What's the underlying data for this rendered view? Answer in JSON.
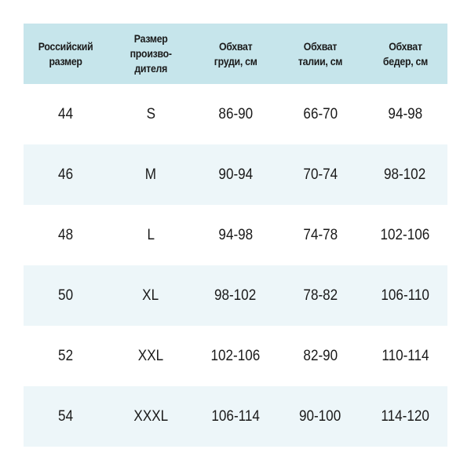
{
  "headers": [
    "Российский\nразмер",
    "Размер\nпроизво-\nдителя",
    "Обхват\nгруди, см",
    "Обхват\nталии, см",
    "Обхват\nбедер, см"
  ],
  "rows": [
    [
      "44",
      "S",
      "86-90",
      "66-70",
      "94-98"
    ],
    [
      "46",
      "M",
      "90-94",
      "70-74",
      "98-102"
    ],
    [
      "48",
      "L",
      "94-98",
      "74-78",
      "102-106"
    ],
    [
      "50",
      "XL",
      "98-102",
      "78-82",
      "106-110"
    ],
    [
      "52",
      "XXL",
      "102-106",
      "82-90",
      "110-114"
    ],
    [
      "54",
      "XXXL",
      "106-114",
      "90-100",
      "114-120"
    ]
  ],
  "colors": {
    "header_bg": "#c6e5eb",
    "stripe_bg": "#edf6f9"
  }
}
